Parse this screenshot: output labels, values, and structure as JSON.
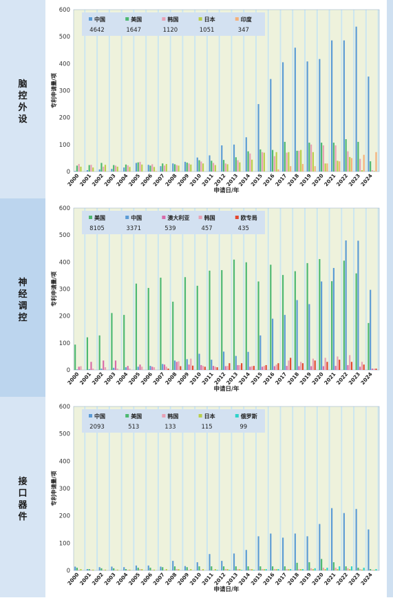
{
  "sections": [
    {
      "label": "脑控外设"
    },
    {
      "label": "神经调控"
    },
    {
      "label": "接口器件"
    }
  ],
  "chart_data": [
    {
      "type": "bar",
      "section": "脑控外设",
      "ylabel": "专利申请量/项",
      "xlabel": "申请日/年",
      "ylim": [
        0,
        600
      ],
      "yticks": [
        0,
        100,
        200,
        300,
        400,
        500,
        600
      ],
      "categories": [
        "2000",
        "2001",
        "2002",
        "2003",
        "2004",
        "2005",
        "2006",
        "2007",
        "2008",
        "2009",
        "2010",
        "2011",
        "2012",
        "2013",
        "2014",
        "2015",
        "2016",
        "2017",
        "2018",
        "2019",
        "2020",
        "2021",
        "2022",
        "2023",
        "2024"
      ],
      "series": [
        {
          "name": "中国",
          "total": "4642",
          "color": "#5b9bd5",
          "values": [
            2,
            5,
            8,
            10,
            15,
            32,
            25,
            20,
            30,
            36,
            52,
            60,
            97,
            100,
            127,
            250,
            343,
            405,
            459,
            408,
            417,
            486,
            486,
            537,
            352
          ]
        },
        {
          "name": "美国",
          "total": "1647",
          "color": "#4db870",
          "values": [
            22,
            24,
            32,
            24,
            26,
            34,
            22,
            30,
            27,
            33,
            42,
            40,
            43,
            53,
            75,
            82,
            80,
            110,
            77,
            107,
            107,
            107,
            120,
            110,
            38
          ]
        },
        {
          "name": "韩国",
          "total": "1120",
          "color": "#e8a0b4",
          "values": [
            28,
            25,
            18,
            22,
            23,
            36,
            27,
            22,
            24,
            30,
            37,
            32,
            30,
            42,
            67,
            72,
            57,
            70,
            77,
            100,
            97,
            97,
            75,
            47,
            5
          ]
        },
        {
          "name": "日本",
          "total": "1051",
          "color": "#b9cf4a",
          "values": [
            18,
            15,
            25,
            18,
            17,
            26,
            17,
            28,
            22,
            26,
            30,
            24,
            27,
            34,
            44,
            70,
            72,
            72,
            80,
            72,
            30,
            40,
            54,
            5,
            2
          ]
        },
        {
          "name": "印度",
          "total": "347",
          "color": "#f3b07a",
          "values": [
            0,
            0,
            0,
            0,
            0,
            0,
            2,
            0,
            0,
            0,
            0,
            0,
            0,
            0,
            0,
            0,
            8,
            20,
            28,
            20,
            30,
            38,
            50,
            62,
            72
          ]
        }
      ]
    },
    {
      "type": "bar",
      "section": "神经调控",
      "ylabel": "专利申请量/项",
      "xlabel": "申请日/年",
      "ylim": [
        0,
        600
      ],
      "yticks": [
        0,
        100,
        200,
        300,
        400,
        500,
        600
      ],
      "categories": [
        "2000",
        "2001",
        "2002",
        "2003",
        "2004",
        "2005",
        "2006",
        "2007",
        "2008",
        "2009",
        "2010",
        "2011",
        "2012",
        "2013",
        "2014",
        "2015",
        "2016",
        "2017",
        "2018",
        "2019",
        "2020",
        "2021",
        "2022",
        "2023",
        "2024"
      ],
      "series": [
        {
          "name": "美国",
          "total": "8105",
          "color": "#4db870",
          "values": [
            94,
            121,
            128,
            211,
            204,
            320,
            304,
            342,
            253,
            344,
            312,
            368,
            370,
            409,
            399,
            328,
            390,
            352,
            366,
            396,
            411,
            329,
            405,
            358,
            174
          ]
        },
        {
          "name": "中国",
          "total": "3371",
          "color": "#5b9bd5",
          "values": [
            2,
            3,
            5,
            8,
            10,
            12,
            15,
            22,
            35,
            40,
            60,
            38,
            68,
            52,
            67,
            128,
            190,
            204,
            259,
            244,
            328,
            378,
            480,
            479,
            297
          ]
        },
        {
          "name": "澳大利亚",
          "total": "539",
          "color": "#d86aa9",
          "values": [
            12,
            30,
            35,
            35,
            15,
            20,
            12,
            20,
            30,
            20,
            18,
            15,
            14,
            18,
            12,
            12,
            14,
            15,
            14,
            14,
            14,
            15,
            18,
            12,
            5
          ]
        },
        {
          "name": "韩国",
          "total": "457",
          "color": "#e8a0b4",
          "values": [
            14,
            5,
            10,
            5,
            5,
            12,
            10,
            12,
            32,
            42,
            15,
            12,
            15,
            18,
            14,
            15,
            20,
            35,
            30,
            42,
            45,
            50,
            55,
            30,
            5
          ]
        },
        {
          "name": "欧专局",
          "total": "435",
          "color": "#e2472f",
          "values": [
            0,
            0,
            0,
            0,
            0,
            0,
            0,
            5,
            14,
            16,
            12,
            10,
            25,
            25,
            15,
            18,
            25,
            45,
            25,
            35,
            30,
            38,
            30,
            20,
            5
          ]
        }
      ]
    },
    {
      "type": "bar",
      "section": "接口器件",
      "ylabel": "专利申请量/项",
      "xlabel": "申请日/年",
      "ylim": [
        0,
        600
      ],
      "yticks": [
        0,
        100,
        200,
        300,
        400,
        500,
        600
      ],
      "categories": [
        "2000",
        "2001",
        "2002",
        "2003",
        "2004",
        "2005",
        "2006",
        "2007",
        "2008",
        "2009",
        "2010",
        "2011",
        "2012",
        "2013",
        "2014",
        "2015",
        "2016",
        "2017",
        "2018",
        "2019",
        "2020",
        "2021",
        "2022",
        "2023",
        "2024"
      ],
      "series": [
        {
          "name": "中国",
          "total": "2093",
          "color": "#5b9bd5",
          "values": [
            14,
            5,
            12,
            14,
            12,
            18,
            18,
            14,
            35,
            16,
            30,
            60,
            35,
            62,
            75,
            125,
            135,
            120,
            135,
            125,
            170,
            228,
            210,
            225,
            150
          ]
        },
        {
          "name": "美国",
          "total": "513",
          "color": "#4db870",
          "values": [
            10,
            5,
            8,
            8,
            5,
            10,
            10,
            12,
            15,
            12,
            15,
            15,
            15,
            15,
            15,
            15,
            15,
            15,
            28,
            30,
            42,
            30,
            15,
            10,
            5
          ]
        },
        {
          "name": "韩国",
          "total": "133",
          "color": "#e8a0b4",
          "values": [
            2,
            2,
            2,
            2,
            2,
            5,
            2,
            2,
            5,
            2,
            2,
            2,
            5,
            5,
            5,
            5,
            5,
            5,
            5,
            8,
            10,
            10,
            8,
            5,
            2
          ]
        },
        {
          "name": "日本",
          "total": "115",
          "color": "#b9cf4a",
          "values": [
            5,
            3,
            3,
            3,
            3,
            5,
            3,
            5,
            5,
            5,
            5,
            5,
            5,
            5,
            5,
            5,
            5,
            5,
            5,
            5,
            5,
            5,
            5,
            3,
            2
          ]
        },
        {
          "name": "俄罗斯",
          "total": "99",
          "color": "#2fd2c9",
          "values": [
            0,
            0,
            0,
            0,
            0,
            0,
            0,
            0,
            0,
            0,
            0,
            2,
            2,
            2,
            2,
            5,
            5,
            5,
            5,
            8,
            10,
            15,
            15,
            10,
            5
          ]
        }
      ]
    }
  ]
}
